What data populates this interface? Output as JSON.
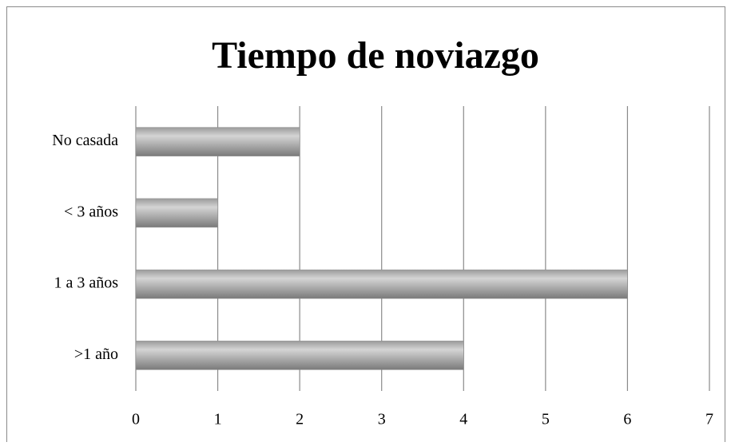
{
  "chart_data": {
    "type": "bar",
    "orientation": "horizontal",
    "title": "Tiempo de noviazgo",
    "categories": [
      "No casada",
      "< 3 años",
      "1 a 3 años",
      ">1 año"
    ],
    "values": [
      2,
      1,
      6,
      4
    ],
    "color": "#8c8c8c",
    "xlim": [
      0,
      7
    ],
    "xticks": [
      0,
      1,
      2,
      3,
      4,
      5,
      6,
      7
    ],
    "grid": true
  }
}
